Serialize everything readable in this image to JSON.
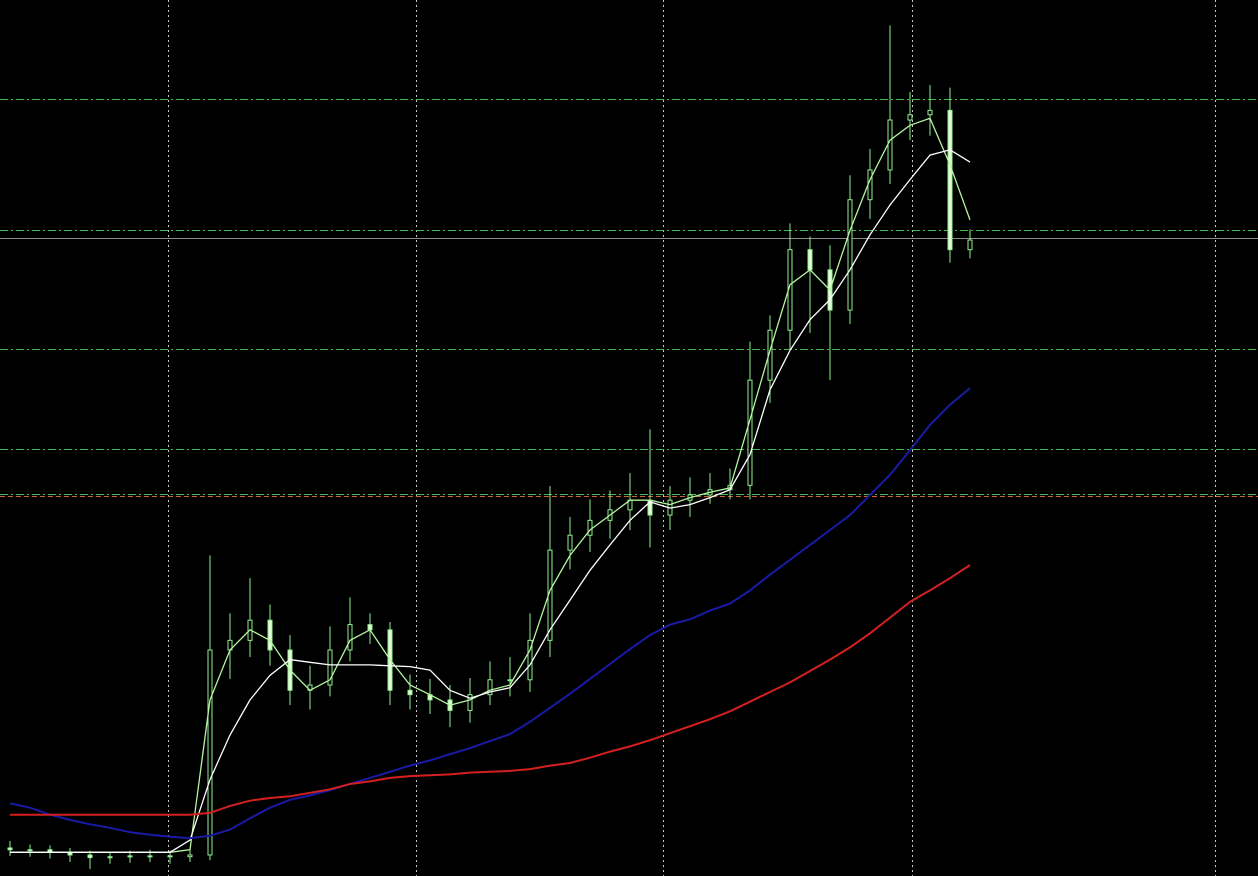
{
  "chart_data": {
    "type": "candlestick",
    "background": "#000000",
    "xlim": [
      -0.5,
      62.4
    ],
    "ylim": [
      0,
      100
    ],
    "xgrid": [
      7.9,
      20.3,
      32.65,
      45.1,
      60.25
    ],
    "xgrid_color": "#c8c8c8",
    "hlines": [
      {
        "value": 88.7,
        "color": "#3fbf3f",
        "style": "dashdot"
      },
      {
        "value": 73.7,
        "color": "#3fbf3f",
        "style": "dashdot"
      },
      {
        "value": 72.8,
        "color": "#8a8a8a",
        "style": "solid"
      },
      {
        "value": 60.2,
        "color": "#3fbf3f",
        "style": "dashdot"
      },
      {
        "value": 48.7,
        "color": "#3fbf3f",
        "style": "dashdot"
      },
      {
        "value": 43.6,
        "color": "#3fbf3f",
        "style": "dashdot"
      },
      {
        "value": 43.4,
        "color": "#c8643c",
        "style": "dashed"
      }
    ],
    "up_color": "#000000",
    "down_color": "#e6ffd8",
    "candle_outline": "#90ee90",
    "open": [
      3.2,
      3.0,
      3.0,
      2.7,
      2.4,
      2.1,
      2.2,
      2.3,
      2.3,
      2.2,
      2.4,
      25.8,
      26.9,
      29.2,
      25.8,
      21.2,
      21.8,
      25.8,
      28.7,
      28.1,
      21.2,
      20.7,
      20.1,
      18.9,
      20.7,
      22.4,
      22.4,
      26.9,
      37.2,
      38.9,
      40.6,
      41.8,
      42.9,
      41.2,
      42.9,
      43.5,
      44.1,
      44.6,
      56.6,
      62.3,
      71.5,
      69.2,
      64.6,
      77.2,
      80.6,
      86.3,
      86.9,
      87.4,
      71.5
    ],
    "high": [
      4.0,
      3.6,
      3.5,
      3.2,
      2.9,
      2.8,
      2.9,
      3.0,
      2.9,
      3.1,
      36.6,
      30.0,
      34.0,
      31.0,
      27.5,
      24.0,
      28.5,
      31.8,
      30.0,
      29.0,
      23.0,
      22.5,
      21.8,
      22.6,
      24.5,
      25.0,
      30.0,
      44.5,
      41.0,
      43.0,
      44.0,
      46.0,
      51.0,
      44.5,
      45.5,
      46.0,
      46.5,
      61.0,
      64.0,
      74.5,
      73.0,
      72.0,
      80.0,
      83.0,
      97.1,
      89.5,
      90.3,
      90.0,
      73.8
    ],
    "low": [
      2.3,
      2.2,
      2.0,
      1.6,
      0.8,
      1.4,
      1.5,
      1.6,
      1.4,
      1.6,
      1.8,
      22.5,
      25.0,
      24.0,
      19.5,
      19.0,
      20.5,
      24.5,
      26.5,
      19.5,
      19.0,
      18.5,
      17.0,
      17.5,
      19.5,
      20.5,
      21.0,
      25.0,
      35.0,
      37.0,
      38.5,
      39.5,
      37.5,
      39.5,
      41.0,
      42.5,
      43.0,
      43.0,
      54.0,
      60.0,
      62.0,
      56.6,
      63.0,
      75.0,
      79.0,
      84.0,
      84.5,
      70.0,
      70.5
    ],
    "close": [
      3.0,
      3.0,
      2.7,
      2.4,
      2.1,
      2.2,
      2.3,
      2.3,
      2.2,
      2.4,
      25.8,
      26.9,
      29.2,
      25.8,
      21.2,
      21.8,
      25.8,
      28.7,
      28.1,
      21.2,
      20.7,
      20.1,
      18.9,
      20.7,
      22.4,
      22.4,
      26.9,
      37.2,
      38.9,
      40.6,
      41.8,
      42.9,
      41.2,
      42.9,
      43.5,
      44.1,
      44.6,
      56.6,
      62.3,
      71.5,
      69.2,
      64.6,
      77.2,
      80.6,
      86.3,
      86.9,
      87.4,
      71.5,
      72.6
    ],
    "series": [
      {
        "color": "#b4f5a0",
        "values": [
          2.7,
          2.7,
          2.7,
          2.7,
          2.7,
          2.7,
          2.7,
          2.7,
          2.7,
          3.0,
          20.1,
          25.8,
          28.1,
          26.9,
          23.5,
          21.2,
          22.4,
          26.9,
          28.1,
          24.7,
          21.8,
          20.7,
          19.5,
          20.1,
          21.2,
          21.8,
          25.8,
          32.6,
          36.6,
          39.5,
          41.2,
          42.9,
          42.9,
          42.4,
          43.2,
          43.8,
          44.3,
          52.1,
          60.0,
          67.5,
          69.2,
          66.9,
          73.7,
          79.5,
          84.0,
          85.7,
          86.5,
          81.2,
          74.9
        ]
      },
      {
        "color": "#ffffff",
        "values": [
          2.7,
          2.7,
          2.7,
          2.7,
          2.7,
          2.7,
          2.7,
          2.7,
          2.7,
          4.1,
          11.0,
          16.1,
          20.1,
          22.9,
          24.7,
          24.4,
          24.1,
          24.1,
          24.1,
          24.0,
          23.9,
          23.5,
          21.2,
          20.3,
          21.0,
          21.5,
          24.1,
          28.1,
          31.5,
          34.9,
          37.8,
          40.6,
          42.7,
          42.0,
          42.4,
          43.2,
          44.1,
          48.1,
          55.5,
          60.0,
          63.5,
          65.8,
          69.2,
          73.2,
          76.6,
          79.5,
          82.3,
          82.9,
          81.5
        ]
      },
      {
        "color": "#1a1aa8",
        "values": [
          8.3,
          7.8,
          7.0,
          6.4,
          5.9,
          5.5,
          5.0,
          4.7,
          4.5,
          4.3,
          4.6,
          5.3,
          6.6,
          7.8,
          8.7,
          9.2,
          9.8,
          10.5,
          11.2,
          11.9,
          12.6,
          13.2,
          13.9,
          14.6,
          15.4,
          16.2,
          17.6,
          19.2,
          20.8,
          22.5,
          24.2,
          25.9,
          27.5,
          28.7,
          29.3,
          30.3,
          31.1,
          32.6,
          34.4,
          36.1,
          37.8,
          39.5,
          41.2,
          43.5,
          45.8,
          48.6,
          51.5,
          53.8,
          55.7
        ]
      },
      {
        "color": "#d42020",
        "values": [
          7.0,
          7.0,
          7.0,
          7.0,
          7.0,
          7.0,
          7.0,
          7.0,
          7.0,
          7.0,
          7.2,
          8.0,
          8.6,
          8.9,
          9.1,
          9.5,
          9.9,
          10.5,
          10.8,
          11.2,
          11.4,
          11.5,
          11.6,
          11.8,
          11.9,
          12.0,
          12.2,
          12.6,
          12.9,
          13.5,
          14.2,
          14.8,
          15.5,
          16.3,
          17.1,
          17.9,
          18.8,
          19.9,
          21.0,
          22.1,
          23.4,
          24.7,
          26.1,
          27.7,
          29.5,
          31.3,
          32.6,
          34.0,
          35.5
        ]
      }
    ]
  }
}
